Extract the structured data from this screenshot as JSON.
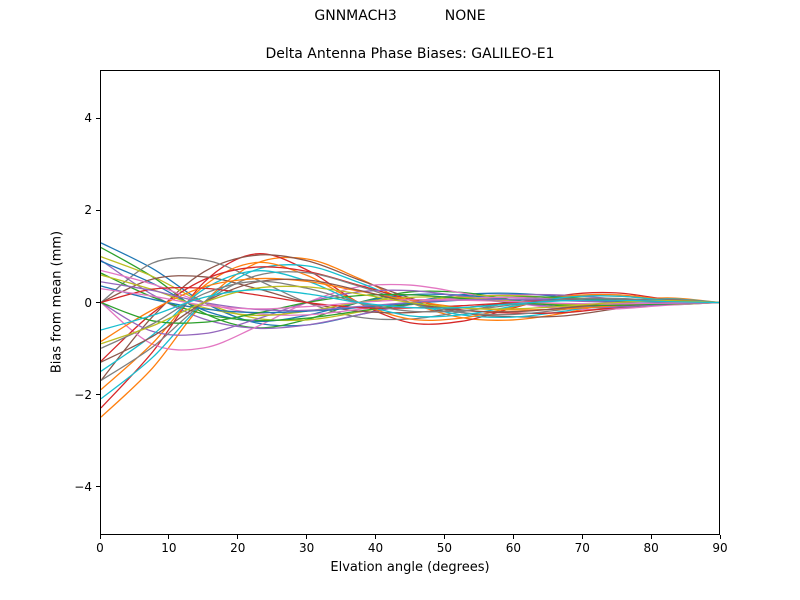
{
  "header": {
    "left": "GNNMACH3",
    "right": "NONE"
  },
  "chart_data": {
    "type": "line",
    "title": "Delta Antenna Phase Biases: GALILEO-E1",
    "xlabel": "Elvation angle (degrees)",
    "ylabel": "Bias from mean (mm)",
    "xlim": [
      0,
      90
    ],
    "ylim": [
      -5.05,
      5.05
    ],
    "grid": false,
    "legend_position": "none",
    "xticks": [
      {
        "value": 0,
        "label": "0"
      },
      {
        "value": 10,
        "label": "10"
      },
      {
        "value": 20,
        "label": "20"
      },
      {
        "value": 30,
        "label": "30"
      },
      {
        "value": 40,
        "label": "40"
      },
      {
        "value": 50,
        "label": "50"
      },
      {
        "value": 60,
        "label": "60"
      },
      {
        "value": 70,
        "label": "70"
      },
      {
        "value": 80,
        "label": "80"
      },
      {
        "value": 90,
        "label": "90"
      }
    ],
    "yticks": [
      {
        "value": -4,
        "label": "−4"
      },
      {
        "value": -2,
        "label": "−2"
      },
      {
        "value": 0,
        "label": "0"
      },
      {
        "value": 2,
        "label": "2"
      },
      {
        "value": 4,
        "label": "4"
      }
    ],
    "x": [
      0,
      7.5,
      15,
      22.5,
      30,
      37.5,
      45,
      52.5,
      60,
      67.5,
      75,
      82.5,
      90
    ],
    "series": [
      {
        "color": "#1f77b4",
        "values": [
          1.3,
          0.74,
          0.0,
          -0.44,
          -0.49,
          -0.27,
          0.0,
          0.17,
          0.2,
          0.12,
          0.0,
          -0.05,
          0.0
        ]
      },
      {
        "color": "#ff7f0e",
        "values": [
          -2.5,
          -1.43,
          0.0,
          0.85,
          0.95,
          0.53,
          0.0,
          -0.33,
          -0.38,
          -0.23,
          0.0,
          0.1,
          0.0
        ]
      },
      {
        "color": "#2ca02c",
        "values": [
          1.2,
          0.56,
          -0.23,
          -0.55,
          -0.37,
          0.0,
          0.23,
          0.22,
          0.06,
          -0.08,
          -0.11,
          -0.04,
          0.0
        ]
      },
      {
        "color": "#d62728",
        "values": [
          -2.3,
          -1.08,
          0.44,
          1.06,
          0.71,
          0.0,
          -0.44,
          -0.41,
          -0.12,
          0.16,
          0.21,
          0.07,
          0.0
        ]
      },
      {
        "color": "#9467bd",
        "values": [
          0.92,
          0.17,
          -0.36,
          -0.56,
          -0.49,
          -0.27,
          -0.05,
          0.12,
          0.17,
          0.16,
          0.08,
          0.01,
          0.0
        ]
      },
      {
        "color": "#8c564b",
        "values": [
          -1.7,
          -0.31,
          0.67,
          1.03,
          0.91,
          0.5,
          0.1,
          -0.22,
          -0.31,
          -0.29,
          -0.14,
          -0.02,
          0.0
        ]
      },
      {
        "color": "#e377c2",
        "values": [
          0.0,
          -0.91,
          -0.99,
          -0.54,
          0.0,
          0.34,
          0.38,
          0.21,
          0.0,
          -0.14,
          -0.14,
          -0.06,
          0.0
        ]
      },
      {
        "color": "#7f7f7f",
        "values": [
          0.0,
          0.86,
          0.93,
          0.51,
          0.0,
          -0.32,
          -0.36,
          -0.2,
          0.0,
          0.14,
          0.14,
          0.06,
          0.0
        ]
      },
      {
        "color": "#bcbd22",
        "values": [
          1.0,
          0.57,
          0.0,
          -0.34,
          -0.38,
          -0.21,
          0.0,
          0.13,
          0.15,
          0.09,
          0.0,
          -0.04,
          0.0
        ]
      },
      {
        "color": "#17becf",
        "values": [
          -2.1,
          -1.2,
          0.0,
          0.71,
          0.8,
          0.44,
          0.0,
          -0.27,
          -0.32,
          -0.19,
          0.0,
          0.08,
          0.0
        ]
      },
      {
        "color": "#1f77b4",
        "values": [
          0.9,
          0.42,
          -0.17,
          -0.41,
          -0.28,
          0.0,
          0.17,
          0.16,
          0.05,
          -0.06,
          -0.08,
          -0.03,
          0.0
        ]
      },
      {
        "color": "#ff7f0e",
        "values": [
          -1.9,
          -0.89,
          0.36,
          0.87,
          0.59,
          0.0,
          -0.36,
          -0.34,
          -0.1,
          0.13,
          0.17,
          0.06,
          0.0
        ]
      },
      {
        "color": "#2ca02c",
        "values": [
          0.64,
          0.12,
          -0.25,
          -0.39,
          -0.34,
          -0.19,
          -0.04,
          0.08,
          0.12,
          0.11,
          0.05,
          0.01,
          0.0
        ]
      },
      {
        "color": "#d62728",
        "values": [
          -1.28,
          -0.23,
          0.5,
          0.77,
          0.68,
          0.38,
          0.07,
          -0.16,
          -0.23,
          -0.22,
          -0.11,
          -0.02,
          0.0
        ]
      },
      {
        "color": "#9467bd",
        "values": [
          0.0,
          -0.63,
          -0.68,
          -0.37,
          0.0,
          0.23,
          0.26,
          0.14,
          0.0,
          -0.1,
          -0.1,
          -0.04,
          0.0
        ]
      },
      {
        "color": "#8c564b",
        "values": [
          0.0,
          0.51,
          0.56,
          0.31,
          0.0,
          -0.19,
          -0.22,
          -0.12,
          0.0,
          0.08,
          0.08,
          0.04,
          0.0
        ]
      },
      {
        "color": "#e377c2",
        "values": [
          0.7,
          0.4,
          0.0,
          -0.24,
          -0.27,
          -0.15,
          0.0,
          0.09,
          0.11,
          0.06,
          0.0,
          -0.03,
          0.0
        ]
      },
      {
        "color": "#7f7f7f",
        "values": [
          -1.7,
          -0.97,
          0.0,
          0.58,
          0.65,
          0.36,
          0.0,
          -0.22,
          -0.26,
          -0.15,
          0.0,
          0.07,
          0.0
        ]
      },
      {
        "color": "#bcbd22",
        "values": [
          0.6,
          0.28,
          -0.11,
          -0.28,
          -0.19,
          0.0,
          0.11,
          0.11,
          0.03,
          -0.04,
          -0.05,
          -0.02,
          0.0
        ]
      },
      {
        "color": "#17becf",
        "values": [
          -1.5,
          -0.71,
          0.29,
          0.69,
          0.47,
          0.0,
          -0.29,
          -0.27,
          -0.08,
          0.11,
          0.14,
          0.05,
          0.0
        ]
      },
      {
        "color": "#1f77b4",
        "values": [
          0.36,
          0.07,
          -0.14,
          -0.22,
          -0.19,
          -0.11,
          -0.02,
          0.05,
          0.07,
          0.06,
          0.03,
          0.01,
          0.0
        ]
      },
      {
        "color": "#ff7f0e",
        "values": [
          -0.85,
          -0.16,
          0.34,
          0.52,
          0.46,
          0.25,
          0.05,
          -0.11,
          -0.16,
          -0.14,
          -0.07,
          -0.01,
          0.0
        ]
      },
      {
        "color": "#2ca02c",
        "values": [
          0.0,
          -0.4,
          -0.43,
          -0.24,
          0.0,
          0.15,
          0.17,
          0.09,
          0.0,
          -0.06,
          -0.06,
          -0.03,
          0.0
        ]
      },
      {
        "color": "#d62728",
        "values": [
          0.0,
          0.29,
          0.31,
          0.17,
          0.0,
          -0.11,
          -0.12,
          -0.07,
          0.0,
          0.05,
          0.05,
          0.02,
          0.0
        ]
      },
      {
        "color": "#9467bd",
        "values": [
          0.45,
          0.26,
          0.0,
          -0.15,
          -0.17,
          -0.09,
          0.0,
          0.06,
          0.07,
          0.04,
          0.0,
          -0.02,
          0.0
        ]
      },
      {
        "color": "#8c564b",
        "values": [
          -1.3,
          -0.74,
          0.0,
          0.44,
          0.49,
          0.27,
          0.0,
          -0.17,
          -0.2,
          -0.12,
          0.0,
          0.05,
          0.0
        ]
      },
      {
        "color": "#e377c2",
        "values": [
          0.3,
          0.14,
          -0.06,
          -0.14,
          -0.09,
          0.0,
          0.06,
          0.05,
          0.02,
          -0.02,
          -0.03,
          -0.01,
          0.0
        ]
      },
      {
        "color": "#7f7f7f",
        "values": [
          -1.0,
          -0.47,
          0.19,
          0.46,
          0.31,
          0.0,
          -0.19,
          -0.18,
          -0.05,
          0.07,
          0.09,
          0.03,
          0.0
        ]
      },
      {
        "color": "#bcbd22",
        "values": [
          -0.9,
          -0.51,
          0.0,
          0.31,
          0.34,
          0.19,
          0.0,
          -0.12,
          -0.14,
          -0.08,
          0.0,
          0.04,
          0.0
        ]
      },
      {
        "color": "#17becf",
        "values": [
          -0.6,
          -0.28,
          0.11,
          0.28,
          0.19,
          0.0,
          -0.11,
          -0.11,
          -0.03,
          0.04,
          0.05,
          0.02,
          0.0
        ]
      }
    ]
  }
}
